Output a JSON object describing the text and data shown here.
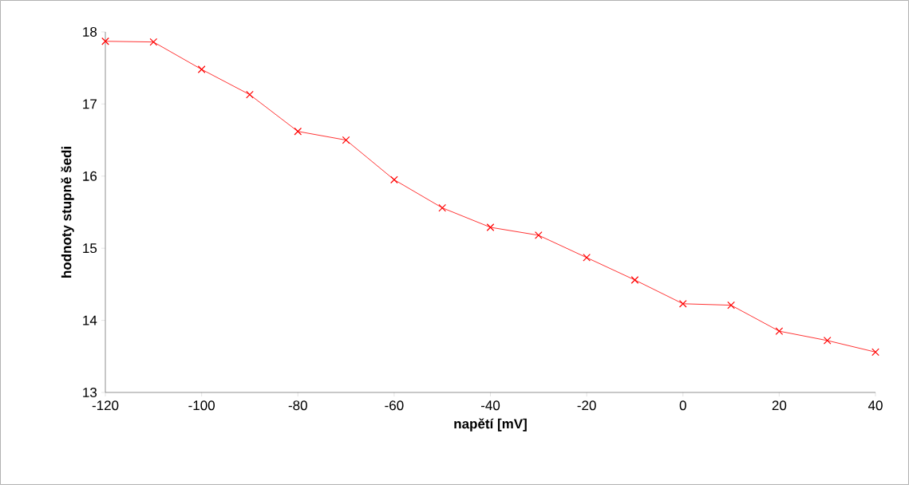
{
  "chart_data": {
    "type": "line",
    "xlabel": "napětí [mV]",
    "ylabel": "hodnoty stupně šedi",
    "x": [
      -120,
      -110,
      -100,
      -90,
      -80,
      -70,
      -60,
      -50,
      -40,
      -30,
      -20,
      -10,
      0,
      10,
      20,
      30,
      40
    ],
    "series": [
      {
        "color": "#ff0000",
        "values": [
          17.87,
          17.86,
          17.48,
          17.13,
          16.62,
          16.5,
          15.95,
          15.56,
          15.29,
          15.18,
          14.87,
          14.56,
          14.23,
          14.21,
          13.85,
          13.72,
          13.56
        ]
      }
    ],
    "xlim": [
      -120,
      40
    ],
    "xticks": [
      -120,
      -100,
      -80,
      -60,
      -40,
      -20,
      0,
      20,
      40
    ],
    "ylim": [
      13,
      18
    ],
    "yticks": [
      13,
      14,
      15,
      16,
      17,
      18
    ],
    "grid": false,
    "marker": "cross",
    "line_style": "solid"
  }
}
